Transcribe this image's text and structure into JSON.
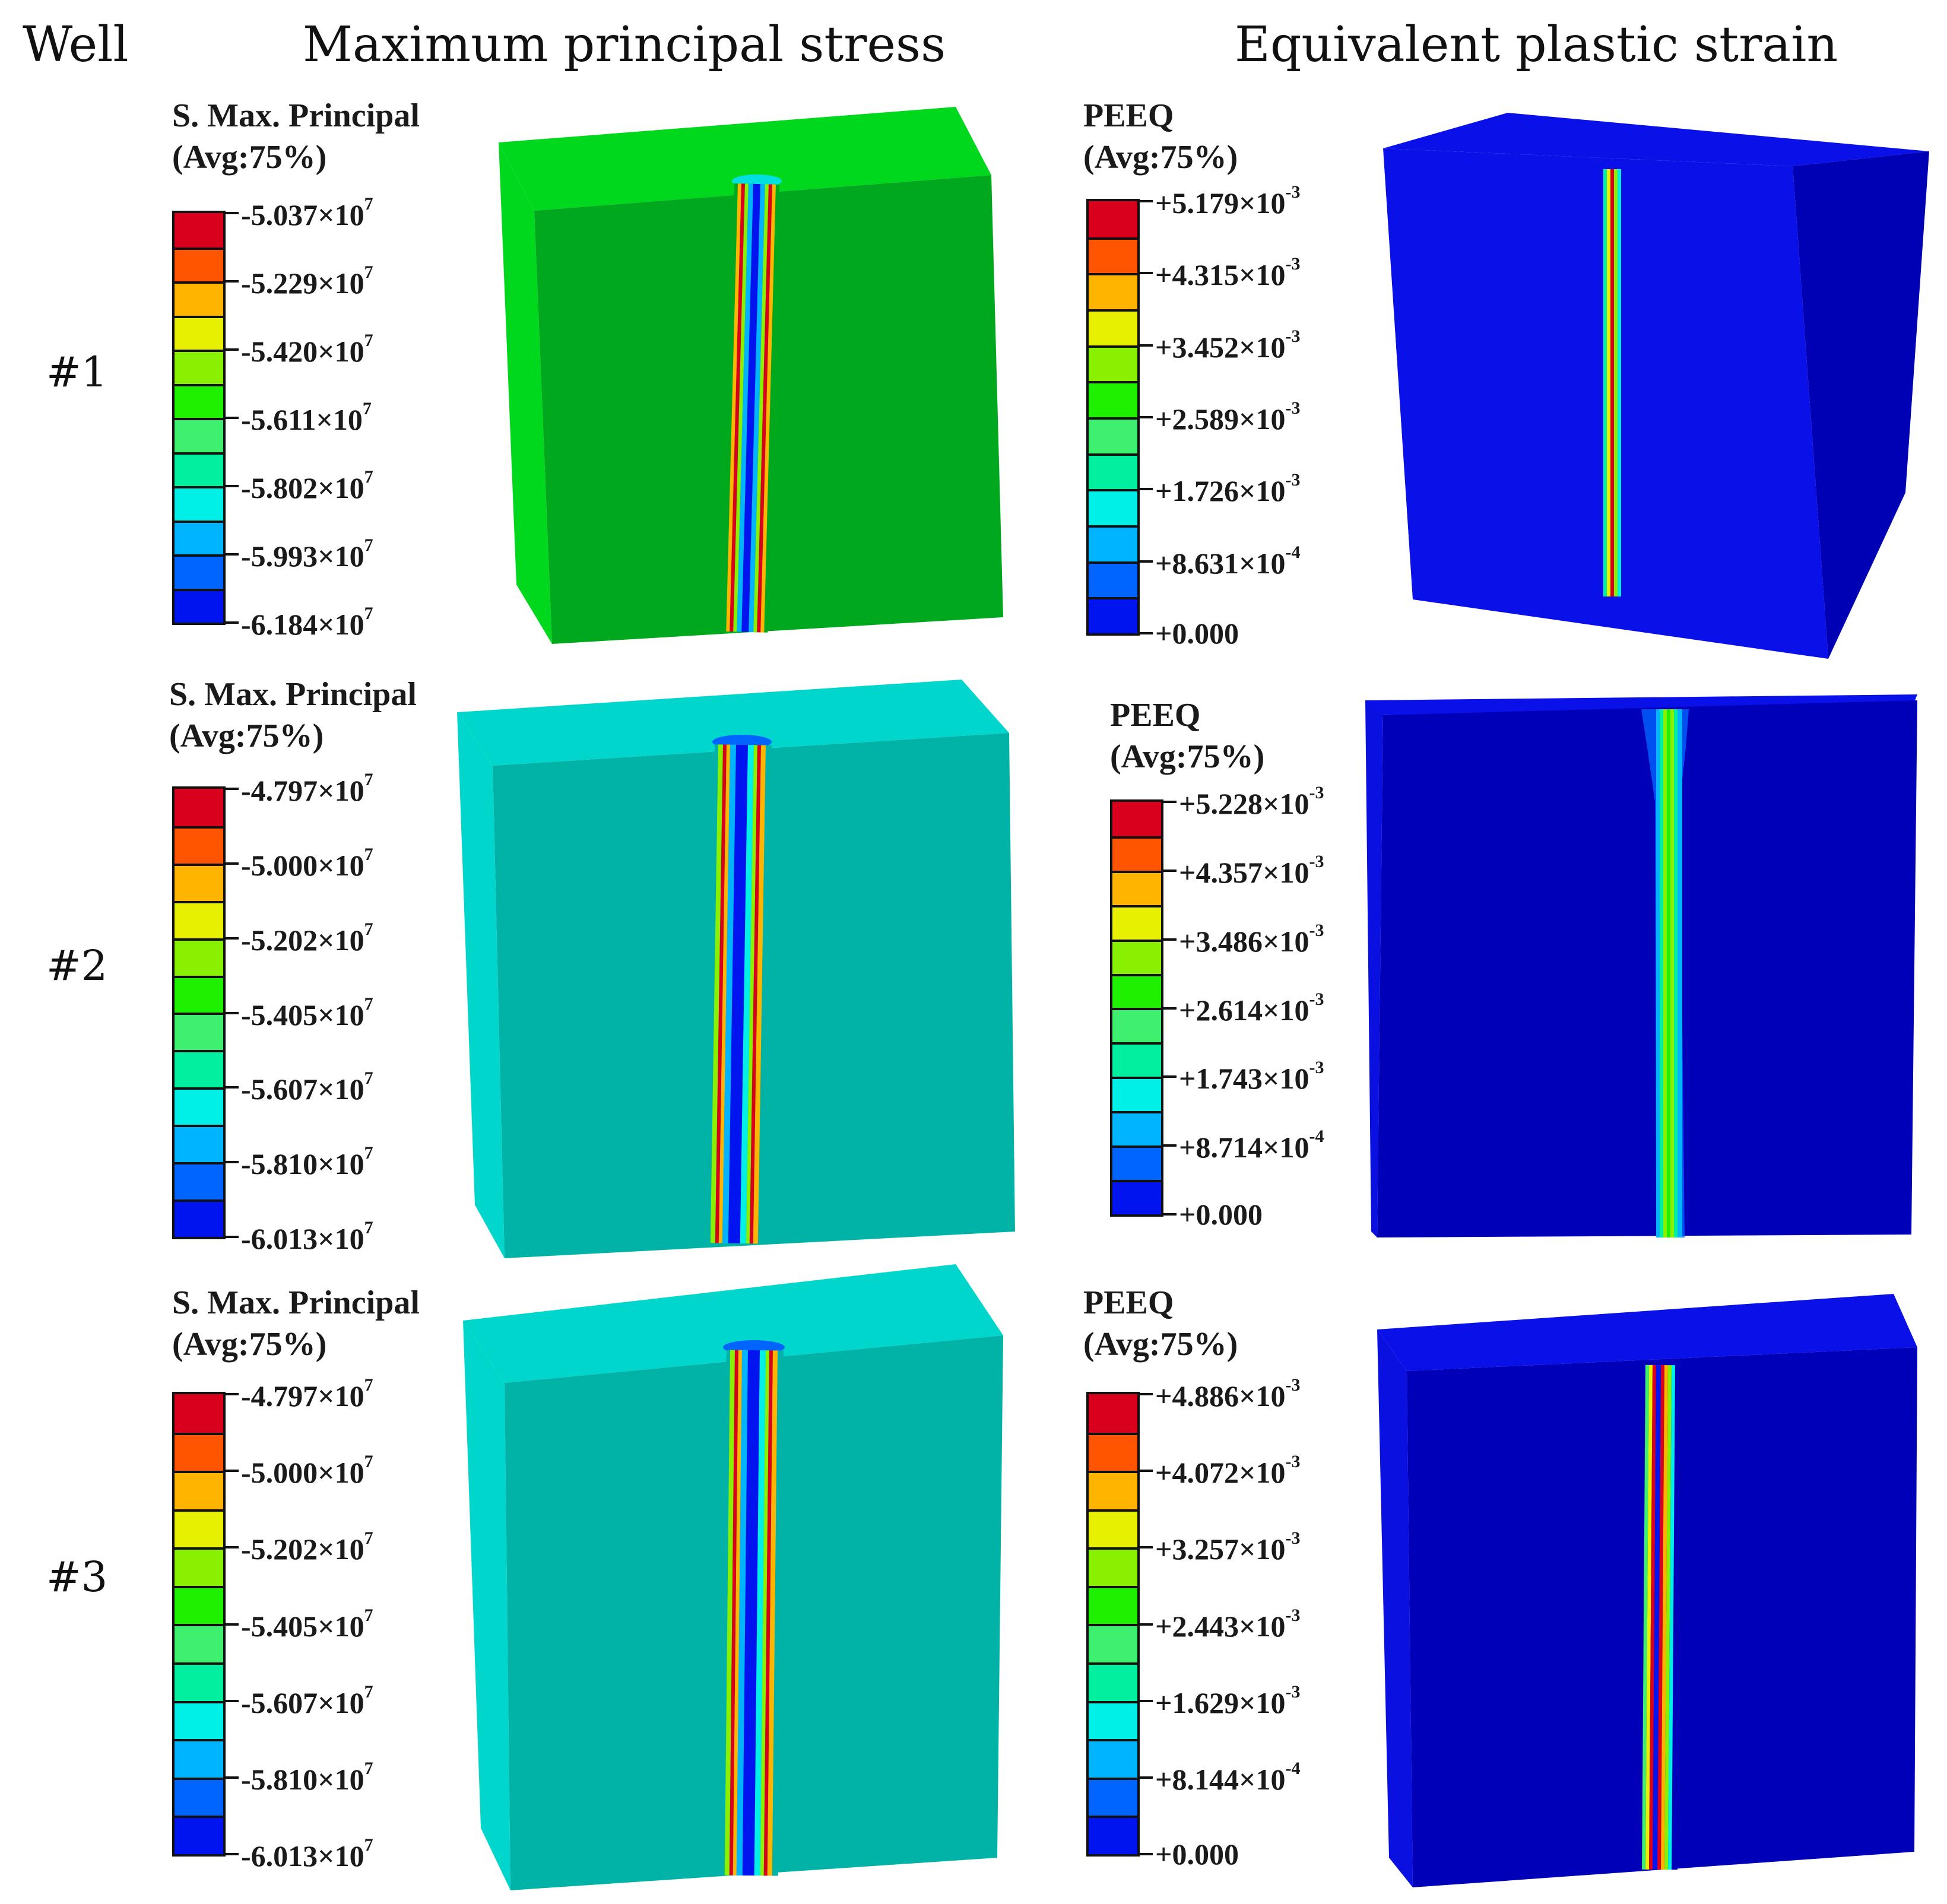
{
  "headers": {
    "well": "Well",
    "stress": "Maximum principal stress",
    "strain": "Equivalent plastic strain"
  },
  "rows": [
    {
      "well": "#1",
      "stress_legend": {
        "title": "S. Max. Principal",
        "subtitle": "(Avg:75%)",
        "ticks": [
          {
            "mant": "-5.037×10",
            "exp": "7"
          },
          {
            "mant": "-5.229×10",
            "exp": "7"
          },
          {
            "mant": "-5.420×10",
            "exp": "7"
          },
          {
            "mant": "-5.611×10",
            "exp": "7"
          },
          {
            "mant": "-5.802×10",
            "exp": "7"
          },
          {
            "mant": "-5.993×10",
            "exp": "7"
          },
          {
            "mant": "-6.184×10",
            "exp": "7"
          }
        ],
        "face_color": "#00a81e",
        "side_color": "#00d81e",
        "top_color": "#00d81e"
      },
      "strain_legend": {
        "title": "PEEQ",
        "subtitle": "(Avg:75%)",
        "ticks": [
          {
            "mant": "+5.179×10",
            "exp": "-3"
          },
          {
            "mant": "+4.315×10",
            "exp": "-3"
          },
          {
            "mant": "+3.452×10",
            "exp": "-3"
          },
          {
            "mant": "+2.589×10",
            "exp": "-3"
          },
          {
            "mant": "+1.726×10",
            "exp": "-3"
          },
          {
            "mant": "+8.631×10",
            "exp": "-4"
          },
          {
            "mant": "+0.000",
            "exp": ""
          }
        ],
        "face_color": "#0a10e8",
        "side_color": "#0000b4",
        "top_color": "#0a10e8"
      }
    },
    {
      "well": "#2",
      "stress_legend": {
        "title": "S. Max. Principal",
        "subtitle": "(Avg:75%)",
        "ticks": [
          {
            "mant": "-4.797×10",
            "exp": "7"
          },
          {
            "mant": "-5.000×10",
            "exp": "7"
          },
          {
            "mant": "-5.202×10",
            "exp": "7"
          },
          {
            "mant": "-5.405×10",
            "exp": "7"
          },
          {
            "mant": "-5.607×10",
            "exp": "7"
          },
          {
            "mant": "-5.810×10",
            "exp": "7"
          },
          {
            "mant": "-6.013×10",
            "exp": "7"
          }
        ],
        "face_color": "#00b3a6",
        "side_color": "#00d6cc",
        "top_color": "#00d6cc"
      },
      "strain_legend": {
        "title": "PEEQ",
        "subtitle": "(Avg:75%)",
        "ticks": [
          {
            "mant": "+5.228×10",
            "exp": "-3"
          },
          {
            "mant": "+4.357×10",
            "exp": "-3"
          },
          {
            "mant": "+3.486×10",
            "exp": "-3"
          },
          {
            "mant": "+2.614×10",
            "exp": "-3"
          },
          {
            "mant": "+1.743×10",
            "exp": "-3"
          },
          {
            "mant": "+8.714×10",
            "exp": "-4"
          },
          {
            "mant": "+0.000",
            "exp": ""
          }
        ],
        "face_color": "#0000b8",
        "side_color": "#0a10e0",
        "top_color": "#0a10e8"
      }
    },
    {
      "well": "#3",
      "stress_legend": {
        "title": "S. Max. Principal",
        "subtitle": "(Avg:75%)",
        "ticks": [
          {
            "mant": "-4.797×10",
            "exp": "7"
          },
          {
            "mant": "-5.000×10",
            "exp": "7"
          },
          {
            "mant": "-5.202×10",
            "exp": "7"
          },
          {
            "mant": "-5.405×10",
            "exp": "7"
          },
          {
            "mant": "-5.607×10",
            "exp": "7"
          },
          {
            "mant": "-5.810×10",
            "exp": "7"
          },
          {
            "mant": "-6.013×10",
            "exp": "7"
          }
        ],
        "face_color": "#00b3a6",
        "side_color": "#00d6cc",
        "top_color": "#00d6cc"
      },
      "strain_legend": {
        "title": "PEEQ",
        "subtitle": "(Avg:75%)",
        "ticks": [
          {
            "mant": "+4.886×10",
            "exp": "-3"
          },
          {
            "mant": "+4.072×10",
            "exp": "-3"
          },
          {
            "mant": "+3.257×10",
            "exp": "-3"
          },
          {
            "mant": "+2.443×10",
            "exp": "-3"
          },
          {
            "mant": "+1.629×10",
            "exp": "-3"
          },
          {
            "mant": "+8.144×10",
            "exp": "-4"
          },
          {
            "mant": "+0.000",
            "exp": ""
          }
        ],
        "face_color": "#0000b8",
        "side_color": "#0a10e0",
        "top_color": "#0a10e8"
      }
    }
  ],
  "colormap": [
    "#d8001c",
    "#ff5500",
    "#ffb400",
    "#e6f000",
    "#88f000",
    "#1ef000",
    "#3ff070",
    "#00f0a0",
    "#00f0e8",
    "#00b4ff",
    "#0064ff",
    "#0014f0"
  ]
}
